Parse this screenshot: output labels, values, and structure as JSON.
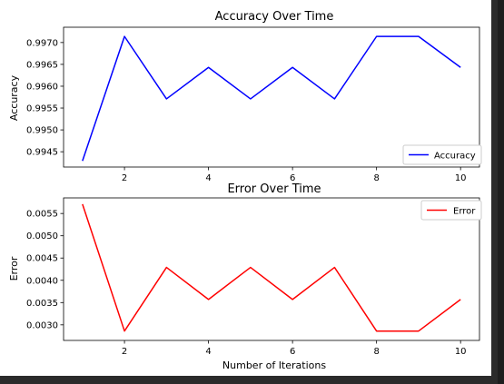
{
  "chart_data": [
    {
      "type": "line",
      "title": "Accuracy Over Time",
      "xlabel": "",
      "ylabel": "Accuracy",
      "x": [
        1,
        2,
        3,
        4,
        5,
        6,
        7,
        8,
        9,
        10
      ],
      "xlim": [
        0.55,
        10.45
      ],
      "xticks": [
        2,
        4,
        6,
        8,
        10
      ],
      "ylim": [
        0.99415,
        0.99735
      ],
      "yticks": [
        0.995,
        0.9955,
        0.996,
        0.9965,
        0.997
      ],
      "ytick_labels": [
        "0.9950",
        "0.9955",
        "0.9960",
        "0.9965",
        "0.9970"
      ],
      "yticks_minor_visible": [
        0.9945
      ],
      "ytick_minor_labels": [
        "0.9945"
      ],
      "series": [
        {
          "name": "Accuracy",
          "color": "#0000ff",
          "values": [
            0.99429,
            0.99714,
            0.99571,
            0.99643,
            0.99571,
            0.99643,
            0.99571,
            0.99714,
            0.99714,
            0.99643
          ]
        }
      ],
      "legend": "lower right",
      "grid": false
    },
    {
      "type": "line",
      "title": "Error Over Time",
      "xlabel": "Number of Iterations",
      "ylabel": "Error",
      "x": [
        1,
        2,
        3,
        4,
        5,
        6,
        7,
        8,
        9,
        10
      ],
      "xlim": [
        0.55,
        10.45
      ],
      "xticks": [
        2,
        4,
        6,
        8,
        10
      ],
      "ylim": [
        0.00265,
        0.00585
      ],
      "yticks": [
        0.003,
        0.0035,
        0.004,
        0.0045,
        0.005,
        0.0055
      ],
      "ytick_labels": [
        "0.0030",
        "0.0035",
        "0.0040",
        "0.0045",
        "0.0050",
        "0.0055"
      ],
      "series": [
        {
          "name": "Error",
          "color": "#ff0000",
          "values": [
            0.00571,
            0.00286,
            0.00429,
            0.00357,
            0.00429,
            0.00357,
            0.00429,
            0.00286,
            0.00286,
            0.00357
          ]
        }
      ],
      "legend": "upper right",
      "grid": false
    }
  ]
}
